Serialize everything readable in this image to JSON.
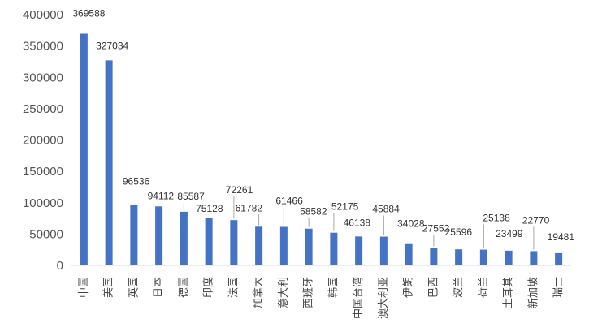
{
  "chart_data": {
    "type": "bar",
    "title": "",
    "xlabel": "",
    "ylabel": "",
    "ylim": [
      0,
      400000
    ],
    "yticks": [
      0,
      50000,
      100000,
      150000,
      200000,
      250000,
      300000,
      350000,
      400000
    ],
    "ytick_labels": [
      "0",
      "50000",
      "100000",
      "150000",
      "200000",
      "250000",
      "300000",
      "350000",
      "400000"
    ],
    "grid": false,
    "legend": "none",
    "bar_color": "#4472C4",
    "categories": [
      "中国",
      "美国",
      "英国",
      "日本",
      "德国",
      "印度",
      "法国",
      "加拿大",
      "意大利",
      "西班牙",
      "韩国",
      "中国台湾",
      "澳大利亚",
      "伊朗",
      "巴西",
      "波兰",
      "荷兰",
      "土耳其",
      "新加坡",
      "瑞士"
    ],
    "values": [
      369588,
      327034,
      96536,
      94112,
      85587,
      75128,
      72261,
      61782,
      61466,
      58582,
      52175,
      46138,
      45884,
      34028,
      27552,
      25596,
      25138,
      23499,
      22770,
      19481
    ],
    "data_labels": [
      "369588",
      "327034",
      "96536",
      "94112",
      "85587",
      "75128",
      "72261",
      "61782",
      "61466",
      "58582",
      "52175",
      "46138",
      "45884",
      "34028",
      "27552",
      "25596",
      "25138",
      "23499",
      "22770",
      "19481"
    ]
  }
}
